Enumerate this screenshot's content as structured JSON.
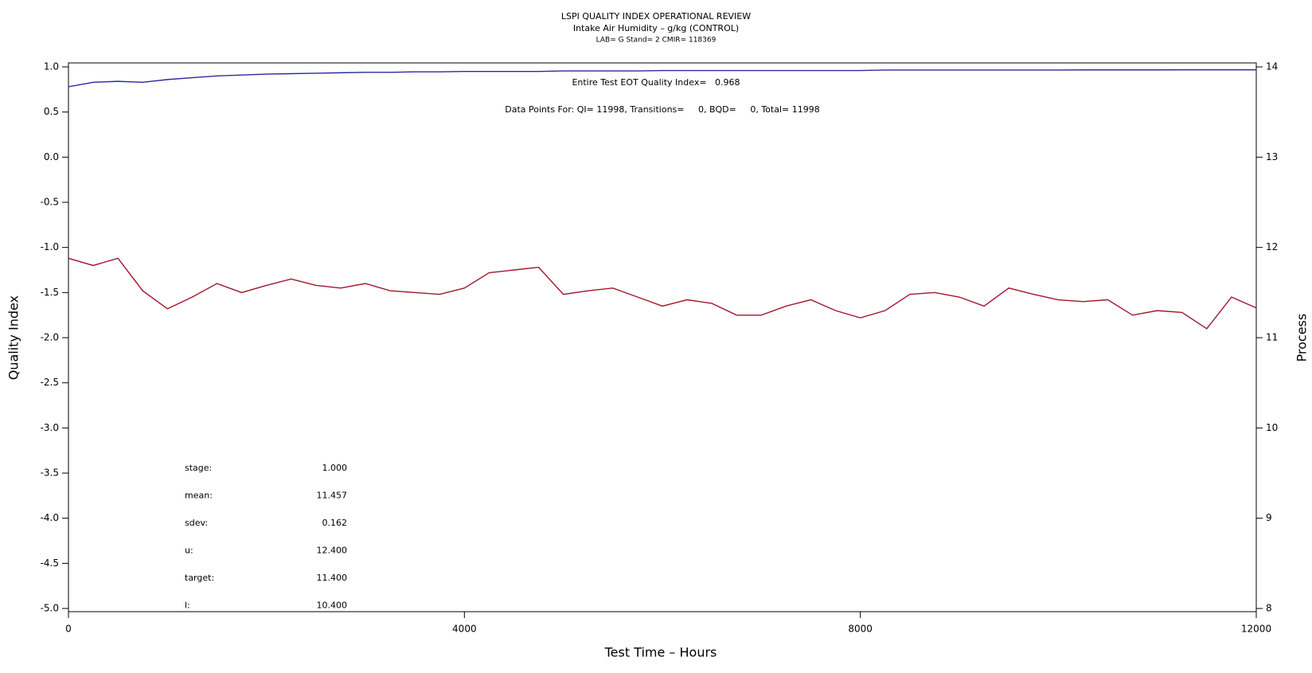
{
  "chart_data": {
    "type": "line",
    "title": "LSPI QUALITY INDEX OPERATIONAL REVIEW",
    "subtitle": "Intake Air Humidity – g/kg (CONTROL)",
    "subtitle2": "LAB= G Stand= 2 CMIR= 118369",
    "x_label": "Test Time – Hours",
    "y_label": "Quality Index",
    "y2_label": "Process",
    "annotations": [
      "Entire Test EOT Quality Index=   0.968",
      "Data Points For: QI= 11998, Transitions=     0, BQD=     0, Total= 11998"
    ],
    "stats": [
      {
        "label": "stage:",
        "value": "1.000"
      },
      {
        "label": "mean:",
        "value": "11.457"
      },
      {
        "label": "sdev:",
        "value": "0.162"
      },
      {
        "label": "u:",
        "value": "12.400"
      },
      {
        "label": "target:",
        "value": "11.400"
      },
      {
        "label": "l:",
        "value": "10.400"
      }
    ],
    "x": [
      0,
      250,
      500,
      750,
      1000,
      1250,
      1500,
      1750,
      2000,
      2250,
      2500,
      2750,
      3000,
      3250,
      3500,
      3750,
      4000,
      4250,
      4500,
      4750,
      5000,
      5250,
      5500,
      5750,
      6000,
      6250,
      6500,
      6750,
      7000,
      7250,
      7500,
      7750,
      8000,
      8250,
      8500,
      8750,
      9000,
      9250,
      9500,
      9750,
      10000,
      10250,
      10500,
      10750,
      11000,
      11250,
      11500,
      11750,
      12000
    ],
    "xlim": [
      0,
      12000
    ],
    "xticks": [
      0,
      4000,
      8000,
      12000
    ],
    "ylim": [
      -5,
      1
    ],
    "yticks": [
      {
        "value": -5,
        "label": "-5.0"
      },
      -4.5,
      {
        "value": -4,
        "label": "-4.0"
      },
      -3.5,
      {
        "value": -3,
        "label": "-3.0"
      },
      -2.5,
      {
        "value": -2,
        "label": "-2.0"
      },
      -1.5,
      {
        "value": -1,
        "label": "-1.0"
      },
      -0.5,
      {
        "value": 0,
        "label": "0.0"
      },
      0.5,
      {
        "value": 1,
        "label": "1.0"
      }
    ],
    "y2lim": [
      8,
      14
    ],
    "y2ticks": [
      8,
      9,
      10,
      11,
      12,
      13,
      14
    ],
    "series": [
      {
        "name": "Quality Index",
        "color": "#2b2b9e",
        "axis": "y",
        "values": [
          0.78,
          0.83,
          0.84,
          0.83,
          0.86,
          0.88,
          0.9,
          0.91,
          0.92,
          0.925,
          0.93,
          0.935,
          0.94,
          0.94,
          0.945,
          0.945,
          0.95,
          0.95,
          0.95,
          0.95,
          0.955,
          0.955,
          0.955,
          0.955,
          0.96,
          0.96,
          0.96,
          0.96,
          0.96,
          0.96,
          0.96,
          0.96,
          0.96,
          0.965,
          0.965,
          0.965,
          0.965,
          0.965,
          0.965,
          0.965,
          0.965,
          0.967,
          0.967,
          0.967,
          0.967,
          0.968,
          0.968,
          0.968,
          0.968
        ]
      },
      {
        "name": "Process",
        "color": "#a3152f",
        "axis": "y2",
        "values": [
          11.88,
          11.8,
          11.88,
          11.52,
          11.32,
          11.45,
          11.6,
          11.5,
          11.58,
          11.65,
          11.58,
          11.55,
          11.6,
          11.52,
          11.5,
          11.48,
          11.55,
          11.72,
          11.75,
          11.78,
          11.48,
          11.52,
          11.55,
          11.45,
          11.35,
          11.42,
          11.38,
          11.25,
          11.25,
          11.35,
          11.42,
          11.3,
          11.22,
          11.3,
          11.48,
          11.5,
          11.45,
          11.35,
          11.55,
          11.48,
          11.42,
          11.4,
          11.42,
          11.25,
          11.3,
          11.28,
          11.1,
          11.45,
          11.33
        ]
      }
    ]
  }
}
